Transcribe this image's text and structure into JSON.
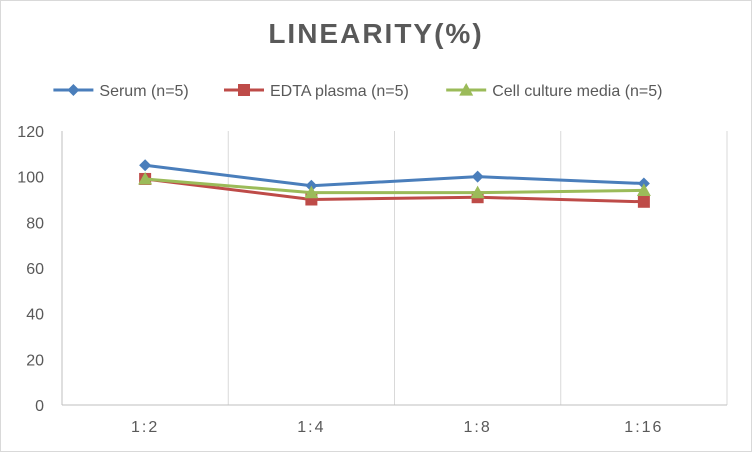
{
  "chart_data": {
    "type": "line",
    "title": "LINEARITY(%)",
    "xlabel": "",
    "ylabel": "",
    "categories": [
      "1:2",
      "1:4",
      "1:8",
      "1:16"
    ],
    "ylim": [
      0,
      120
    ],
    "yticks": [
      0,
      20,
      40,
      60,
      80,
      100,
      120
    ],
    "grid": "vertical",
    "legend_position": "top",
    "series": [
      {
        "name": "Serum (n=5)",
        "values": [
          105,
          96,
          100,
          97
        ],
        "color": "#4a7ebb",
        "marker": "diamond"
      },
      {
        "name": "EDTA plasma (n=5)",
        "values": [
          99,
          90,
          91,
          89
        ],
        "color": "#be4b48",
        "marker": "square"
      },
      {
        "name": "Cell culture media (n=5)",
        "values": [
          99,
          93,
          93,
          94
        ],
        "color": "#9bbb59",
        "marker": "triangle"
      }
    ]
  }
}
